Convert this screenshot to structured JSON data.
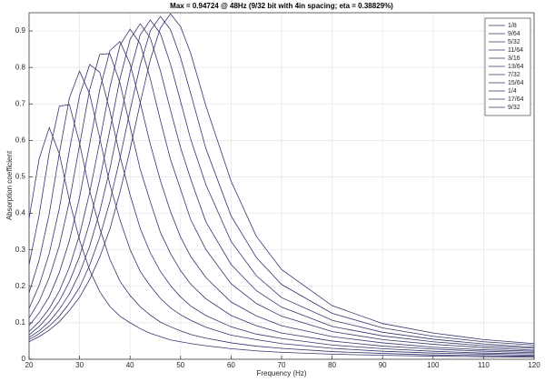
{
  "chart_data": {
    "type": "line",
    "title": "Max = 0.94724 @ 48Hz (9/32 bit with 4in spacing; eta = 0.38829%)",
    "x_label": "Frequency (Hz)",
    "y_label": "Absorption coefficient",
    "x": [
      20,
      22,
      24,
      26,
      28,
      30,
      32,
      34,
      36,
      38,
      40,
      42,
      44,
      46,
      48,
      50,
      52,
      55,
      60,
      65,
      70,
      80,
      90,
      100,
      110,
      120
    ],
    "xlim": [
      20,
      120
    ],
    "xticks": [
      20,
      30,
      40,
      50,
      60,
      70,
      80,
      90,
      100,
      110,
      120
    ],
    "ylim": [
      0,
      0.95
    ],
    "yticks": [
      0,
      0.1,
      0.2,
      0.3,
      0.4,
      0.5,
      0.6,
      0.7,
      0.8,
      0.9
    ],
    "grid": true,
    "legend_location": "northeast",
    "series": [
      {
        "name": "1/8",
        "color": "#35356e",
        "values": [
          0.385,
          0.55,
          0.635,
          0.563,
          0.435,
          0.327,
          0.244,
          0.185,
          0.145,
          0.118,
          0.1,
          0.084,
          0.071,
          0.062,
          0.053,
          0.048,
          0.043,
          0.037,
          0.029,
          0.023,
          0.019,
          0.014,
          0.011,
          0.0086,
          0.007,
          0.0057
        ]
      },
      {
        "name": "9/64",
        "color": "#35356e",
        "values": [
          0.259,
          0.396,
          0.567,
          0.694,
          0.698,
          0.592,
          0.462,
          0.359,
          0.274,
          0.214,
          0.175,
          0.144,
          0.121,
          0.102,
          0.089,
          0.078,
          0.068,
          0.058,
          0.045,
          0.036,
          0.03,
          0.021,
          0.016,
          0.012,
          0.01,
          0.0083
        ]
      },
      {
        "name": "5/32",
        "color": "#35356e",
        "values": [
          0.182,
          0.272,
          0.399,
          0.565,
          0.717,
          0.79,
          0.727,
          0.606,
          0.479,
          0.382,
          0.301,
          0.241,
          0.201,
          0.167,
          0.141,
          0.122,
          0.107,
          0.088,
          0.066,
          0.054,
          0.043,
          0.03,
          0.022,
          0.017,
          0.014,
          0.011
        ]
      },
      {
        "name": "11/64",
        "color": "#35356e",
        "values": [
          0.139,
          0.203,
          0.29,
          0.414,
          0.574,
          0.723,
          0.808,
          0.787,
          0.681,
          0.557,
          0.451,
          0.359,
          0.292,
          0.241,
          0.202,
          0.171,
          0.146,
          0.12,
          0.089,
          0.069,
          0.057,
          0.039,
          0.029,
          0.022,
          0.017,
          0.015
        ]
      },
      {
        "name": "3/16",
        "color": "#35356e",
        "values": [
          0.113,
          0.159,
          0.224,
          0.312,
          0.434,
          0.587,
          0.739,
          0.836,
          0.838,
          0.757,
          0.638,
          0.521,
          0.432,
          0.348,
          0.29,
          0.243,
          0.206,
          0.166,
          0.12,
          0.092,
          0.072,
          0.05,
          0.036,
          0.028,
          0.022,
          0.018
        ]
      },
      {
        "name": "13/64",
        "color": "#35356e",
        "values": [
          0.092,
          0.127,
          0.172,
          0.238,
          0.326,
          0.444,
          0.59,
          0.739,
          0.846,
          0.871,
          0.81,
          0.704,
          0.59,
          0.49,
          0.405,
          0.335,
          0.282,
          0.224,
          0.157,
          0.119,
          0.092,
          0.062,
          0.045,
          0.033,
          0.026,
          0.022
        ]
      },
      {
        "name": "7/32",
        "color": "#35356e",
        "values": [
          0.076,
          0.103,
          0.139,
          0.187,
          0.253,
          0.341,
          0.457,
          0.597,
          0.745,
          0.861,
          0.905,
          0.865,
          0.769,
          0.655,
          0.548,
          0.466,
          0.383,
          0.301,
          0.207,
          0.153,
          0.118,
          0.076,
          0.054,
          0.041,
          0.032,
          0.025
        ]
      },
      {
        "name": "15/64",
        "color": "#35356e",
        "values": [
          0.067,
          0.09,
          0.121,
          0.16,
          0.213,
          0.282,
          0.375,
          0.493,
          0.628,
          0.769,
          0.877,
          0.92,
          0.881,
          0.791,
          0.683,
          0.58,
          0.494,
          0.377,
          0.26,
          0.188,
          0.143,
          0.09,
          0.064,
          0.048,
          0.037,
          0.03
        ]
      },
      {
        "name": "1/4",
        "color": "#35356e",
        "values": [
          0.06,
          0.078,
          0.103,
          0.137,
          0.179,
          0.236,
          0.31,
          0.405,
          0.522,
          0.657,
          0.787,
          0.889,
          0.93,
          0.893,
          0.809,
          0.707,
          0.603,
          0.479,
          0.323,
          0.229,
          0.169,
          0.107,
          0.074,
          0.055,
          0.042,
          0.033
        ]
      },
      {
        "name": "17/64",
        "color": "#35356e",
        "values": [
          0.054,
          0.07,
          0.091,
          0.118,
          0.154,
          0.197,
          0.258,
          0.335,
          0.432,
          0.551,
          0.682,
          0.806,
          0.9,
          0.94,
          0.904,
          0.827,
          0.729,
          0.578,
          0.393,
          0.279,
          0.205,
          0.126,
          0.086,
          0.063,
          0.048,
          0.039
        ]
      },
      {
        "name": "9/32",
        "color": "#35356e",
        "values": [
          0.048,
          0.062,
          0.08,
          0.103,
          0.134,
          0.17,
          0.219,
          0.28,
          0.357,
          0.458,
          0.575,
          0.702,
          0.821,
          0.908,
          0.94724,
          0.912,
          0.839,
          0.695,
          0.488,
          0.337,
          0.246,
          0.147,
          0.098,
          0.072,
          0.054,
          0.043
        ]
      }
    ]
  }
}
